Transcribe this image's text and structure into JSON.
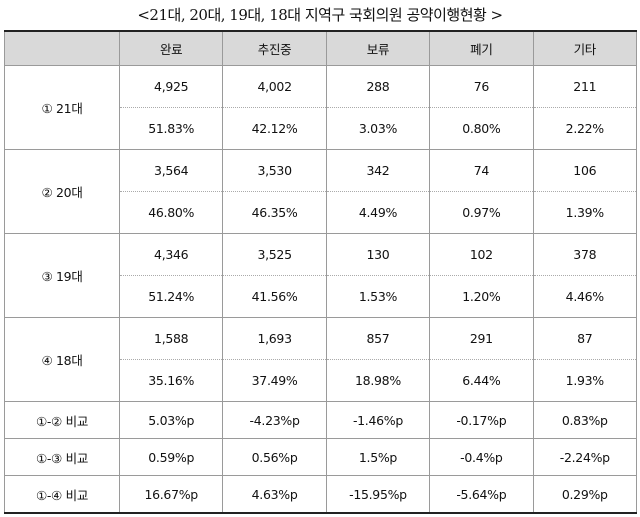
{
  "caption": "<21대, 20대, 19대, 18대 지역구 국회의원 공약이행현황 >",
  "columns": [
    "",
    "완료",
    "추진중",
    "보류",
    "폐기",
    "기타"
  ],
  "groups": [
    {
      "label": "① 21대",
      "counts": [
        "4,925",
        "4,002",
        "288",
        "76",
        "211"
      ],
      "percents": [
        "51.83%",
        "42.12%",
        "3.03%",
        "0.80%",
        "2.22%"
      ]
    },
    {
      "label": "② 20대",
      "counts": [
        "3,564",
        "3,530",
        "342",
        "74",
        "106"
      ],
      "percents": [
        "46.80%",
        "46.35%",
        "4.49%",
        "0.97%",
        "1.39%"
      ]
    },
    {
      "label": "③ 19대",
      "counts": [
        "4,346",
        "3,525",
        "130",
        "102",
        "378"
      ],
      "percents": [
        "51.24%",
        "41.56%",
        "1.53%",
        "1.20%",
        "4.46%"
      ]
    },
    {
      "label": "④ 18대",
      "counts": [
        "1,588",
        "1,693",
        "857",
        "291",
        "87"
      ],
      "percents": [
        "35.16%",
        "37.49%",
        "18.98%",
        "6.44%",
        "1.93%"
      ]
    }
  ],
  "comparisons": [
    {
      "label": "①-② 비교",
      "values": [
        "5.03%p",
        "-4.23%p",
        "-1.46%p",
        "-0.17%p",
        "0.83%p"
      ]
    },
    {
      "label": "①-③ 비교",
      "values": [
        "0.59%p",
        "0.56%p",
        "1.5%p",
        "-0.4%p",
        "-2.24%p"
      ]
    },
    {
      "label": "①-④ 비교",
      "values": [
        "16.67%p",
        "4.63%p",
        "-15.95%p",
        "-5.64%p",
        "0.29%p"
      ]
    }
  ]
}
